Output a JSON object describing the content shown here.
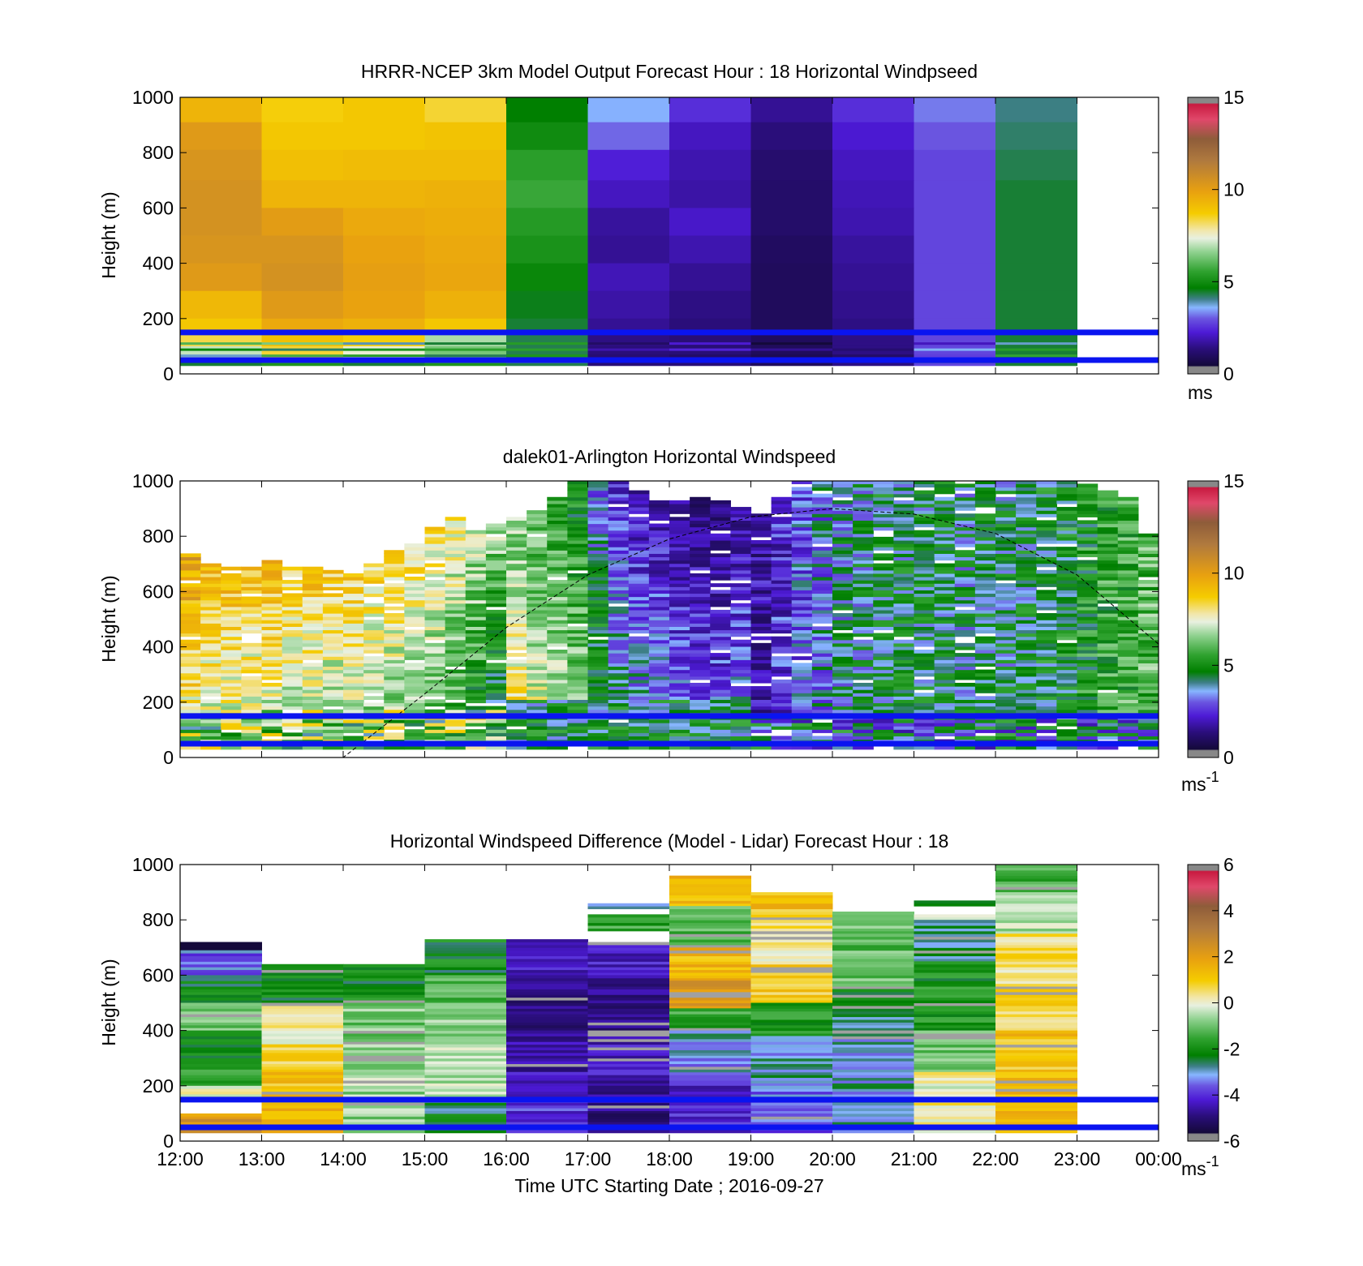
{
  "figure": {
    "x_axis_label": "Time UTC  Starting Date ; 2016-09-27",
    "x_tick_labels": [
      "12:00",
      "13:00",
      "14:00",
      "15:00",
      "16:00",
      "17:00",
      "18:00",
      "19:00",
      "20:00",
      "21:00",
      "22:00",
      "23:00",
      "00:00"
    ],
    "y_tick_labels": [
      "0",
      "200",
      "400",
      "600",
      "800",
      "1000"
    ],
    "y_axis_label": "Height (m)",
    "reference_line_heights_m": [
      150,
      50
    ],
    "reference_line_color": "#0a14f0"
  },
  "chart_data": [
    {
      "type": "heatmap",
      "title": "HRRR-NCEP 3km Model Output   Forecast Hour : 18 Horizontal Windpseed",
      "ylabel": "Height (m)",
      "ylim": [
        0,
        1000
      ],
      "xlim": [
        "12:00",
        "00:00"
      ],
      "x_hours": [
        "12:00",
        "13:00",
        "14:00",
        "15:00",
        "16:00",
        "17:00",
        "18:00",
        "19:00",
        "20:00",
        "21:00",
        "22:00"
      ],
      "hour_width": 1,
      "height_levels_m": [
        [
          1000,
          910
        ],
        [
          910,
          810
        ],
        [
          810,
          700
        ],
        [
          700,
          600
        ],
        [
          600,
          500
        ],
        [
          500,
          400
        ],
        [
          400,
          300
        ],
        [
          300,
          200
        ],
        [
          200,
          150
        ],
        [
          150,
          100
        ],
        [
          100,
          50
        ],
        [
          50,
          30
        ]
      ],
      "values": [
        [
          9.5,
          8.8,
          9.0,
          8.6,
          4.8,
          3.8,
          2.8,
          1.8,
          2.8,
          3.5,
          4.3
        ],
        [
          10.3,
          9.0,
          9.0,
          9.1,
          5.1,
          3.4,
          2.3,
          1.5,
          2.5,
          3.3,
          4.4
        ],
        [
          10.5,
          9.2,
          9.3,
          9.3,
          5.6,
          2.6,
          2.1,
          1.2,
          2.3,
          3.1,
          4.5
        ],
        [
          10.6,
          9.5,
          9.5,
          9.6,
          5.8,
          2.3,
          2.0,
          1.1,
          2.2,
          3.1,
          4.6
        ],
        [
          10.6,
          10.2,
          9.8,
          9.7,
          5.5,
          1.9,
          2.4,
          1.1,
          2.1,
          3.1,
          4.6
        ],
        [
          10.5,
          10.5,
          10.0,
          9.8,
          5.3,
          1.8,
          2.1,
          0.9,
          1.9,
          3.1,
          4.6
        ],
        [
          10.3,
          10.6,
          10.1,
          9.9,
          5.0,
          2.2,
          1.8,
          0.8,
          1.8,
          3.1,
          4.6
        ],
        [
          9.4,
          10.3,
          10.0,
          9.6,
          4.7,
          2.0,
          1.6,
          0.8,
          1.7,
          3.1,
          4.6
        ],
        [
          9.0,
          9.8,
          9.6,
          9.0,
          4.6,
          1.8,
          1.5,
          0.8,
          1.6,
          3.1,
          4.6
        ],
        [
          8.5,
          9.2,
          8.8,
          7.0,
          4.5,
          1.6,
          1.4,
          0.8,
          1.6,
          3.1,
          4.6
        ],
        [
          7.2,
          8.6,
          7.6,
          6.5,
          4.5,
          1.5,
          1.4,
          0.8,
          1.6,
          3.1,
          4.6
        ],
        [
          4.6,
          5.4,
          4.6,
          5.4,
          4.5,
          1.4,
          1.4,
          0.8,
          1.6,
          3.1,
          4.6
        ]
      ],
      "colorbar": {
        "min": 0,
        "max": 15,
        "ticks": [
          "0",
          "5",
          "10",
          "15"
        ],
        "unit": "ms"
      }
    },
    {
      "type": "heatmap",
      "title": "dalek01-Arlington  Horizontal Windspeed",
      "ylabel": "Height (m)",
      "ylim": [
        0,
        1000
      ],
      "xlim": [
        "12:00",
        "00:00"
      ],
      "columns_per_hour": 4,
      "column_data_top_m": [
        730,
        700,
        690,
        690,
        710,
        680,
        680,
        670,
        660,
        700,
        740,
        770,
        830,
        860,
        820,
        840,
        860,
        890,
        940,
        1000,
        1000,
        1000,
        960,
        930,
        930,
        940,
        920,
        900,
        880,
        940,
        1000,
        1000,
        1000,
        1000,
        1000,
        1000,
        1000,
        1000,
        1000,
        1000,
        1000,
        1000,
        1000,
        1000,
        980,
        960,
        940,
        800
      ],
      "column_reference_speed": [
        11,
        10.5,
        10.5,
        10.3,
        10.3,
        10.1,
        10.1,
        9.9,
        9.9,
        9.7,
        9.5,
        9.2,
        9.0,
        8.6,
        8.0,
        7.4,
        6.2,
        5.5,
        5.2,
        4.8,
        3.5,
        2.5,
        2.0,
        1.8,
        1.5,
        1.3,
        1.2,
        1.6,
        2.0,
        2.7,
        3.3,
        3.8,
        4.2,
        4.4,
        4.6,
        4.6,
        4.6,
        4.5,
        4.4,
        4.6,
        4.5,
        4.6,
        4.8,
        5.0,
        5.3,
        5.6,
        5.8,
        6.0
      ],
      "solar_elevation_curve": {
        "points_hours": [
          12,
          14,
          15,
          16,
          17,
          18,
          19,
          20,
          21,
          22,
          23,
          24
        ],
        "points_height_m": [
          0,
          0,
          230,
          470,
          660,
          790,
          870,
          900,
          880,
          810,
          660,
          410
        ]
      },
      "colorbar": {
        "min": 0,
        "max": 15,
        "ticks": [
          "0",
          "5",
          "10",
          "15"
        ],
        "unit": "ms",
        "unit_superscript": "-1"
      }
    },
    {
      "type": "heatmap",
      "title": "Horizontal Windspeed Difference (Model - Lidar) Forecast Hour : 18",
      "ylabel": "Height (m)",
      "xlabel": "Time UTC  Starting Date ; 2016-09-27",
      "ylim": [
        0,
        1000
      ],
      "xlim": [
        "12:00",
        "00:00"
      ],
      "x_hours": [
        "12:00",
        "13:00",
        "14:00",
        "15:00",
        "16:00",
        "17:00",
        "18:00",
        "19:00",
        "20:00",
        "21:00",
        "22:00"
      ],
      "column_top_m": [
        720,
        640,
        640,
        730,
        730,
        720,
        960,
        900,
        830,
        870,
        1000
      ],
      "profiles": [
        [
          [
            1000,
            0,
            "none"
          ],
          [
            720,
            690,
            -6.5
          ],
          [
            690,
            600,
            -3.3
          ],
          [
            600,
            500,
            -2.0
          ],
          [
            500,
            400,
            -0.8
          ],
          [
            400,
            300,
            -2.0
          ],
          [
            300,
            200,
            -1.5
          ],
          [
            200,
            150,
            0.1
          ],
          [
            150,
            100,
            "none"
          ],
          [
            100,
            80,
            2.3
          ],
          [
            80,
            30,
            2.6
          ]
        ],
        [
          [
            640,
            500,
            -2.0
          ],
          [
            500,
            350,
            0.2
          ],
          [
            350,
            250,
            0.8
          ],
          [
            250,
            150,
            1.3
          ],
          [
            150,
            30,
            1.5
          ]
        ],
        [
          [
            640,
            500,
            -2.0
          ],
          [
            500,
            350,
            -0.8
          ],
          [
            350,
            200,
            -0.5
          ],
          [
            200,
            30,
            -0.6
          ]
        ],
        [
          [
            730,
            600,
            -2.0
          ],
          [
            600,
            500,
            -1.0
          ],
          [
            500,
            350,
            -0.5
          ],
          [
            350,
            150,
            -0.3
          ],
          [
            150,
            30,
            -2.3
          ]
        ],
        [
          [
            730,
            600,
            -4.2
          ],
          [
            600,
            400,
            -4.8
          ],
          [
            400,
            250,
            -4.5
          ],
          [
            250,
            150,
            -4.2
          ],
          [
            150,
            30,
            -3.8
          ]
        ],
        [
          [
            860,
            840,
            -2.5
          ],
          [
            820,
            760,
            -1.5
          ],
          [
            720,
            600,
            -4.0
          ],
          [
            600,
            400,
            -4.8
          ],
          [
            400,
            200,
            -4.2
          ],
          [
            200,
            100,
            -4.5
          ],
          [
            100,
            30,
            -5.0
          ]
        ],
        [
          [
            960,
            850,
            1.5
          ],
          [
            850,
            700,
            -1.2
          ],
          [
            700,
            580,
            1.5
          ],
          [
            580,
            480,
            2.2
          ],
          [
            480,
            400,
            -1.5
          ],
          [
            400,
            300,
            -2.7
          ],
          [
            300,
            200,
            -3.0
          ],
          [
            200,
            100,
            -4.0
          ],
          [
            100,
            30,
            -3.8
          ]
        ],
        [
          [
            900,
            800,
            1.3
          ],
          [
            800,
            650,
            0.5
          ],
          [
            650,
            500,
            1.0
          ],
          [
            500,
            380,
            -1.8
          ],
          [
            380,
            200,
            -2.8
          ],
          [
            200,
            100,
            -3.3
          ],
          [
            100,
            30,
            -3.5
          ]
        ],
        [
          [
            830,
            750,
            -0.8
          ],
          [
            750,
            550,
            -1.0
          ],
          [
            550,
            400,
            -2.3
          ],
          [
            400,
            200,
            -2.7
          ],
          [
            200,
            30,
            -2.8
          ]
        ],
        [
          [
            870,
            850,
            -2.0
          ],
          [
            820,
            800,
            -0.5
          ],
          [
            800,
            650,
            -2.5
          ],
          [
            650,
            400,
            -1.8
          ],
          [
            400,
            250,
            -0.8
          ],
          [
            250,
            150,
            0.2
          ],
          [
            150,
            30,
            0.4
          ]
        ],
        [
          [
            1000,
            900,
            -1.2
          ],
          [
            900,
            750,
            -0.4
          ],
          [
            750,
            550,
            0.6
          ],
          [
            550,
            400,
            1.0
          ],
          [
            400,
            250,
            1.3
          ],
          [
            250,
            150,
            1.6
          ],
          [
            150,
            30,
            1.7
          ]
        ]
      ],
      "colorbar": {
        "min": -6,
        "max": 6,
        "ticks": [
          "-6",
          "-4",
          "-2",
          "0",
          "2",
          "4",
          "6"
        ],
        "unit": "ms",
        "unit_superscript": "-1"
      }
    }
  ]
}
